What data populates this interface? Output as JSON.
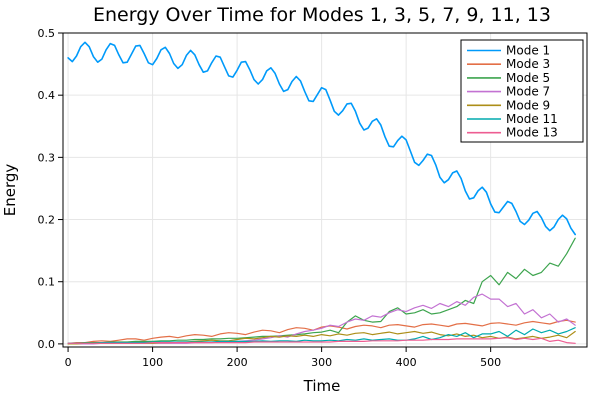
{
  "title": "Energy Over Time for Modes 1, 3, 5, 7, 9, 11, 13",
  "chart_data": {
    "type": "line",
    "title": "Energy Over Time for Modes 1, 3, 5, 7, 9, 11, 13",
    "xlabel": "Time",
    "ylabel": "Energy",
    "xlim": [
      0,
      600
    ],
    "ylim": [
      0,
      0.5
    ],
    "xlim_display": [
      -6,
      614
    ],
    "ylim_display": [
      -0.005,
      0.5
    ],
    "grid": true,
    "grid_color": "#e6e6e6",
    "frame_color": "#000000",
    "background": "#ffffff",
    "x_ticks": {
      "values": [
        0,
        100,
        200,
        300,
        400,
        500
      ],
      "labels": [
        "0",
        "100",
        "200",
        "300",
        "400",
        "500"
      ]
    },
    "y_ticks": {
      "values": [
        0.0,
        0.1,
        0.2,
        0.3,
        0.4,
        0.5
      ],
      "labels": [
        "0.0",
        "0.1",
        "0.2",
        "0.3",
        "0.4",
        "0.5"
      ]
    },
    "legend": {
      "position": "top-right",
      "border_color": "#000000",
      "background": "#ffffff",
      "entries": [
        "Mode 1",
        "Mode 3",
        "Mode 5",
        "Mode 7",
        "Mode 9",
        "Mode 11",
        "Mode 13"
      ]
    },
    "series": [
      {
        "name": "Mode 1",
        "color": "#009AFA",
        "line_width": 1.6,
        "x": {
          "start": 0,
          "step": 5,
          "end": 600
        },
        "y": [
          0.46,
          0.454,
          0.463,
          0.478,
          0.485,
          0.478,
          0.462,
          0.453,
          0.458,
          0.473,
          0.483,
          0.48,
          0.465,
          0.452,
          0.453,
          0.466,
          0.479,
          0.48,
          0.467,
          0.452,
          0.449,
          0.459,
          0.473,
          0.477,
          0.467,
          0.451,
          0.443,
          0.449,
          0.464,
          0.472,
          0.465,
          0.449,
          0.437,
          0.439,
          0.452,
          0.463,
          0.461,
          0.446,
          0.431,
          0.429,
          0.44,
          0.453,
          0.454,
          0.441,
          0.425,
          0.418,
          0.425,
          0.439,
          0.444,
          0.435,
          0.418,
          0.406,
          0.409,
          0.422,
          0.43,
          0.423,
          0.406,
          0.391,
          0.39,
          0.401,
          0.412,
          0.409,
          0.392,
          0.374,
          0.368,
          0.375,
          0.386,
          0.387,
          0.374,
          0.355,
          0.344,
          0.347,
          0.358,
          0.362,
          0.352,
          0.333,
          0.318,
          0.317,
          0.327,
          0.334,
          0.328,
          0.31,
          0.292,
          0.287,
          0.295,
          0.305,
          0.303,
          0.288,
          0.268,
          0.259,
          0.264,
          0.275,
          0.278,
          0.266,
          0.246,
          0.233,
          0.235,
          0.246,
          0.252,
          0.244,
          0.225,
          0.212,
          0.211,
          0.22,
          0.229,
          0.226,
          0.213,
          0.197,
          0.192,
          0.199,
          0.21,
          0.213,
          0.203,
          0.189,
          0.182,
          0.188,
          0.2,
          0.207,
          0.201,
          0.186,
          0.176
        ]
      },
      {
        "name": "Mode 3",
        "color": "#E36F47",
        "line_width": 1.2,
        "x": {
          "start": 0,
          "step": 10,
          "end": 600
        },
        "y": [
          0.001,
          0.002,
          0.002,
          0.004,
          0.005,
          0.004,
          0.006,
          0.008,
          0.008,
          0.006,
          0.009,
          0.011,
          0.012,
          0.01,
          0.013,
          0.015,
          0.014,
          0.012,
          0.016,
          0.018,
          0.017,
          0.015,
          0.019,
          0.022,
          0.021,
          0.018,
          0.023,
          0.026,
          0.025,
          0.022,
          0.027,
          0.029,
          0.027,
          0.024,
          0.028,
          0.03,
          0.029,
          0.026,
          0.03,
          0.031,
          0.029,
          0.027,
          0.031,
          0.032,
          0.03,
          0.028,
          0.032,
          0.033,
          0.031,
          0.029,
          0.033,
          0.034,
          0.032,
          0.03,
          0.034,
          0.036,
          0.034,
          0.032,
          0.036,
          0.038,
          0.035
        ]
      },
      {
        "name": "Mode 5",
        "color": "#3DA44E",
        "line_width": 1.2,
        "x": {
          "start": 0,
          "step": 10,
          "end": 600
        },
        "y": [
          0.001,
          0.001,
          0.002,
          0.002,
          0.002,
          0.003,
          0.003,
          0.003,
          0.004,
          0.004,
          0.004,
          0.005,
          0.005,
          0.006,
          0.006,
          0.007,
          0.007,
          0.008,
          0.008,
          0.009,
          0.009,
          0.01,
          0.011,
          0.012,
          0.012,
          0.013,
          0.014,
          0.015,
          0.016,
          0.018,
          0.019,
          0.022,
          0.018,
          0.035,
          0.045,
          0.038,
          0.035,
          0.036,
          0.052,
          0.058,
          0.048,
          0.05,
          0.055,
          0.048,
          0.05,
          0.055,
          0.06,
          0.07,
          0.065,
          0.1,
          0.11,
          0.095,
          0.115,
          0.105,
          0.12,
          0.11,
          0.115,
          0.13,
          0.125,
          0.145,
          0.17
        ]
      },
      {
        "name": "Mode 7",
        "color": "#C372D2",
        "line_width": 1.2,
        "x": {
          "start": 0,
          "step": 10,
          "end": 600
        },
        "y": [
          0.0,
          0.0,
          0.0,
          0.0,
          0.001,
          0.001,
          0.001,
          0.001,
          0.001,
          0.001,
          0.001,
          0.001,
          0.001,
          0.001,
          0.001,
          0.002,
          0.002,
          0.002,
          0.003,
          0.003,
          0.004,
          0.005,
          0.006,
          0.008,
          0.01,
          0.013,
          0.011,
          0.016,
          0.02,
          0.022,
          0.025,
          0.03,
          0.028,
          0.035,
          0.04,
          0.038,
          0.045,
          0.043,
          0.05,
          0.055,
          0.052,
          0.058,
          0.062,
          0.057,
          0.065,
          0.06,
          0.068,
          0.062,
          0.075,
          0.08,
          0.072,
          0.072,
          0.06,
          0.065,
          0.048,
          0.055,
          0.042,
          0.048,
          0.035,
          0.04,
          0.03
        ]
      },
      {
        "name": "Mode 9",
        "color": "#AC8E18",
        "line_width": 1.2,
        "x": {
          "start": 0,
          "step": 10,
          "end": 600
        },
        "y": [
          0.0,
          0.0,
          0.001,
          0.001,
          0.001,
          0.001,
          0.001,
          0.001,
          0.001,
          0.001,
          0.001,
          0.002,
          0.002,
          0.003,
          0.003,
          0.004,
          0.005,
          0.006,
          0.005,
          0.005,
          0.007,
          0.009,
          0.008,
          0.01,
          0.012,
          0.011,
          0.013,
          0.012,
          0.014,
          0.012,
          0.015,
          0.013,
          0.016,
          0.014,
          0.017,
          0.018,
          0.015,
          0.017,
          0.019,
          0.016,
          0.018,
          0.02,
          0.017,
          0.019,
          0.015,
          0.013,
          0.016,
          0.012,
          0.014,
          0.01,
          0.012,
          0.009,
          0.011,
          0.008,
          0.01,
          0.012,
          0.009,
          0.011,
          0.014,
          0.01,
          0.02
        ]
      },
      {
        "name": "Mode 11",
        "color": "#00AAAE",
        "line_width": 1.2,
        "x": {
          "start": 0,
          "step": 10,
          "end": 600
        },
        "y": [
          0.001,
          0.001,
          0.001,
          0.001,
          0.002,
          0.002,
          0.002,
          0.002,
          0.002,
          0.002,
          0.003,
          0.003,
          0.003,
          0.003,
          0.003,
          0.003,
          0.003,
          0.003,
          0.004,
          0.004,
          0.004,
          0.004,
          0.004,
          0.005,
          0.004,
          0.005,
          0.005,
          0.004,
          0.006,
          0.005,
          0.005,
          0.006,
          0.005,
          0.007,
          0.006,
          0.008,
          0.006,
          0.007,
          0.008,
          0.006,
          0.006,
          0.008,
          0.012,
          0.007,
          0.01,
          0.015,
          0.012,
          0.018,
          0.01,
          0.016,
          0.016,
          0.02,
          0.012,
          0.022,
          0.015,
          0.024,
          0.018,
          0.022,
          0.016,
          0.02,
          0.026
        ]
      },
      {
        "name": "Mode 13",
        "color": "#ED5D92",
        "line_width": 1.2,
        "x": {
          "start": 0,
          "step": 10,
          "end": 600
        },
        "y": [
          0.001,
          0.001,
          0.001,
          0.001,
          0.001,
          0.001,
          0.001,
          0.001,
          0.001,
          0.001,
          0.002,
          0.002,
          0.002,
          0.002,
          0.002,
          0.002,
          0.002,
          0.002,
          0.002,
          0.002,
          0.002,
          0.002,
          0.003,
          0.003,
          0.003,
          0.003,
          0.003,
          0.003,
          0.003,
          0.003,
          0.003,
          0.003,
          0.004,
          0.004,
          0.004,
          0.004,
          0.005,
          0.005,
          0.005,
          0.005,
          0.006,
          0.006,
          0.006,
          0.007,
          0.007,
          0.007,
          0.008,
          0.008,
          0.008,
          0.008,
          0.008,
          0.009,
          0.01,
          0.007,
          0.009,
          0.007,
          0.009,
          0.004,
          0.006,
          0.002,
          0.001
        ]
      }
    ]
  }
}
